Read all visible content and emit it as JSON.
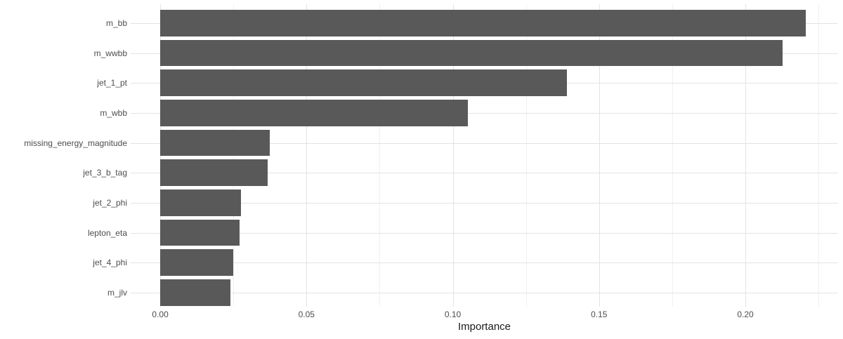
{
  "chart_data": {
    "type": "bar",
    "orientation": "horizontal",
    "title": "",
    "xlabel": "Importance",
    "ylabel": "",
    "categories": [
      "m_bb",
      "m_wwbb",
      "jet_1_pt",
      "m_wbb",
      "missing_energy_magnitude",
      "jet_3_b_tag",
      "jet_2_phi",
      "lepton_eta",
      "jet_4_phi",
      "m_jlv"
    ],
    "values": [
      0.2207,
      0.2128,
      0.1389,
      0.1052,
      0.0374,
      0.0367,
      0.0275,
      0.0271,
      0.025,
      0.0239
    ],
    "x_ticks": [
      0.0,
      0.05,
      0.1,
      0.15,
      0.2
    ],
    "x_tick_labels": [
      "0.00",
      "0.05",
      "0.10",
      "0.15",
      "0.20"
    ],
    "xlim": [
      -0.0101,
      0.2317
    ],
    "grid": "major-and-minor-vertical, major-horizontal",
    "legend": "none",
    "colors": {
      "bar_fill": "#595959",
      "grid_major": "#E3E3E3",
      "grid_minor": "#F0F0F0",
      "axis_text": "#4D4D4D",
      "axis_title": "#1A1A1A",
      "background": "#FFFFFF"
    }
  }
}
